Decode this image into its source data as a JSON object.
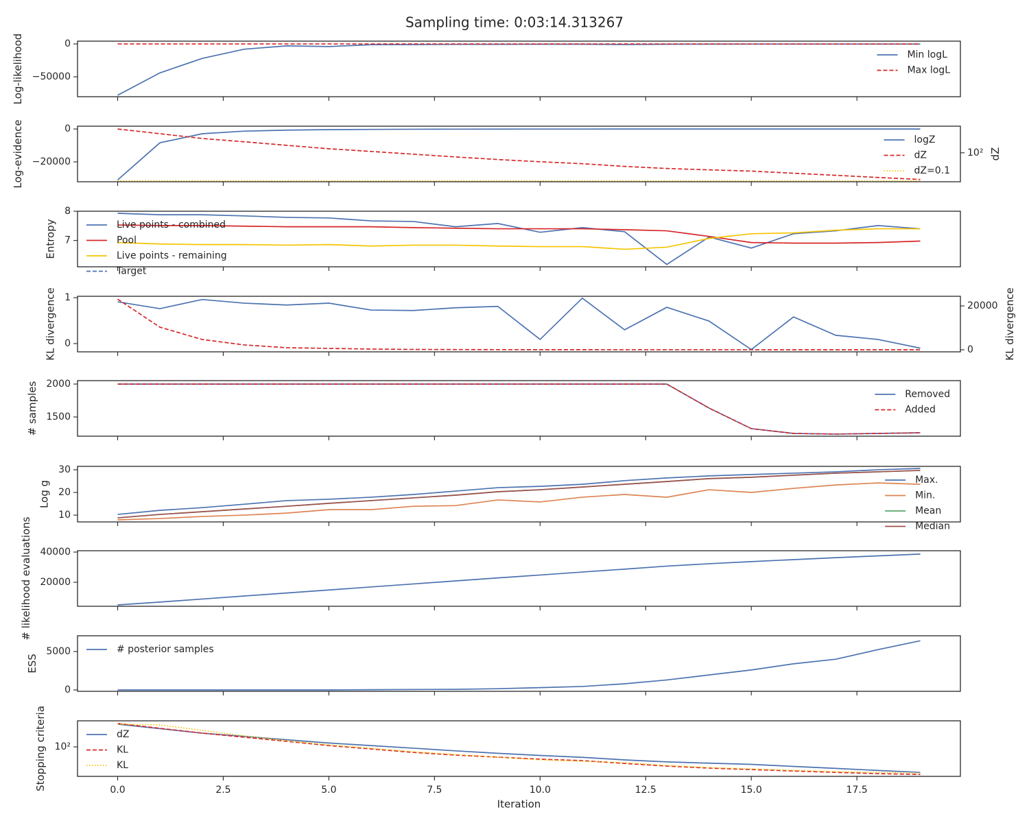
{
  "title": "Sampling time: 0:03:14.313267",
  "sharex": true,
  "chart_data": [
    {
      "type": "line",
      "ylabel": "Log-likelihood",
      "x": [
        0,
        1,
        2,
        3,
        4,
        5,
        6,
        7,
        8,
        9,
        10,
        11,
        12,
        13,
        14,
        15,
        16,
        17,
        18,
        19
      ],
      "xlim": [
        -0.95,
        19.95
      ],
      "xticks": [
        0,
        2.5,
        5,
        7.5,
        10,
        12.5,
        15,
        17.5
      ],
      "ylim": [
        -80200,
        4200
      ],
      "yticks": [
        0,
        {
          "value": -50000,
          "label": "−50000"
        }
      ],
      "legend": "upper right",
      "series": [
        {
          "name": "Min logL",
          "color": "#4c72b0",
          "linestyle": "solid",
          "values": [
            -78000,
            -44000,
            -22000,
            -8000,
            -3000,
            -4000,
            -1200,
            -1000,
            -700,
            -600,
            -500,
            -500,
            -900,
            -500,
            -400,
            -300,
            -300,
            -300,
            -300,
            -300
          ]
        },
        {
          "name": "Max logL",
          "color": "#d62728",
          "linestyle": "dashed",
          "values": [
            -50,
            -50,
            -50,
            -50,
            -50,
            -50,
            -50,
            -50,
            -50,
            -50,
            -50,
            -50,
            -50,
            -50,
            -50,
            -50,
            -50,
            -50,
            -50,
            -50
          ]
        }
      ]
    },
    {
      "type": "line",
      "ylabel": "Log-evidence",
      "x": [
        0,
        1,
        2,
        3,
        4,
        5,
        6,
        7,
        8,
        9,
        10,
        11,
        12,
        13,
        14,
        15,
        16,
        17,
        18,
        19
      ],
      "xlim": [
        -0.95,
        19.95
      ],
      "xticks": [
        0,
        2.5,
        5,
        7.5,
        10,
        12.5,
        15,
        17.5
      ],
      "ylim": [
        -32100,
        1700
      ],
      "yticks": [
        0,
        {
          "value": -20000,
          "label": "−20000"
        }
      ],
      "y2label": "dZ",
      "y2scale": "log",
      "y2lim": [
        0.08,
        70000
      ],
      "y2ticks": [
        {
          "value": 100,
          "label": "10²"
        }
      ],
      "legend": "upper right",
      "series": [
        {
          "name": "logZ",
          "color": "#4c72b0",
          "linestyle": "solid",
          "values": [
            -31000,
            -8400,
            -2900,
            -1300,
            -700,
            -400,
            -250,
            -150,
            -100,
            -70,
            -50,
            -40,
            -30,
            -25,
            -20,
            -15,
            -12,
            -10,
            -8,
            -7
          ]
        },
        {
          "name": "dZ",
          "color": "#d62728",
          "linestyle": "dashed",
          "axis": "y2",
          "values": [
            35000,
            11000,
            3400,
            1500,
            630,
            270,
            140,
            71,
            36,
            19,
            11,
            6.8,
            3.5,
            2.1,
            1.5,
            1.1,
            0.65,
            0.39,
            0.23,
            0.14
          ]
        },
        {
          "name": "dZ=0.1",
          "color": "#f5c400",
          "linestyle": "dotted",
          "axis": "y2",
          "values": [
            0.1,
            0.1,
            0.1,
            0.1,
            0.1,
            0.1,
            0.1,
            0.1,
            0.1,
            0.1,
            0.1,
            0.1,
            0.1,
            0.1,
            0.1,
            0.1,
            0.1,
            0.1,
            0.1,
            0.1
          ]
        }
      ]
    },
    {
      "type": "line",
      "ylabel": "Entropy",
      "x": [
        0,
        1,
        2,
        3,
        4,
        5,
        6,
        7,
        8,
        9,
        10,
        11,
        12,
        13,
        14,
        15,
        16,
        17,
        18,
        19
      ],
      "xlim": [
        -0.95,
        19.95
      ],
      "xticks": [
        0,
        2.5,
        5,
        7.5,
        10,
        12.5,
        15,
        17.5
      ],
      "ylim": [
        6.1,
        8.0
      ],
      "yticks": [
        7,
        8
      ],
      "legend": "upper left",
      "series": [
        {
          "name": "Live points - combined",
          "color": "#4c72b0",
          "linestyle": "solid",
          "values": [
            7.93,
            7.88,
            7.88,
            7.84,
            7.79,
            7.77,
            7.67,
            7.65,
            7.47,
            7.58,
            7.28,
            7.44,
            7.3,
            6.18,
            7.12,
            6.74,
            7.23,
            7.33,
            7.51,
            7.4
          ]
        },
        {
          "name": "Pool",
          "color": "#d62728",
          "linestyle": "solid",
          "values": [
            7.53,
            7.51,
            7.51,
            7.49,
            7.47,
            7.47,
            7.47,
            7.44,
            7.42,
            7.4,
            7.4,
            7.4,
            7.37,
            7.33,
            7.14,
            6.93,
            6.91,
            6.91,
            6.93,
            6.98
          ]
        },
        {
          "name": "Live points - remaining",
          "color": "#f5c400",
          "linestyle": "solid",
          "values": [
            6.93,
            6.88,
            6.86,
            6.86,
            6.84,
            6.86,
            6.81,
            6.84,
            6.84,
            6.81,
            6.79,
            6.79,
            6.7,
            6.77,
            7.07,
            7.23,
            7.26,
            7.35,
            7.4,
            7.4
          ]
        },
        {
          "name": "Target",
          "color": "#4c72b0",
          "linestyle": "dashed",
          "values": [
            null,
            null,
            null,
            null,
            null,
            null,
            null,
            null,
            null,
            null,
            null,
            null,
            null,
            null,
            null,
            null,
            null,
            null,
            null,
            null
          ]
        }
      ]
    },
    {
      "type": "line",
      "ylabel": "KL divergence",
      "x": [
        0,
        1,
        2,
        3,
        4,
        5,
        6,
        7,
        8,
        9,
        10,
        11,
        12,
        13,
        14,
        15,
        16,
        17,
        18,
        19
      ],
      "xlim": [
        -0.95,
        19.95
      ],
      "xticks": [
        0,
        2.5,
        5,
        7.5,
        10,
        12.5,
        15,
        17.5
      ],
      "ylim": [
        -0.18,
        1.03
      ],
      "yticks": [
        0,
        1
      ],
      "y2label": "KL divergence",
      "y2lim": [
        -940,
        24400
      ],
      "y2ticks": [
        0,
        20000
      ],
      "series": [
        {
          "color": "#4c72b0",
          "linestyle": "solid",
          "values": [
            0.91,
            0.76,
            0.96,
            0.88,
            0.84,
            0.88,
            0.73,
            0.72,
            0.78,
            0.81,
            0.09,
            0.99,
            0.3,
            0.79,
            0.49,
            -0.13,
            0.58,
            0.18,
            0.09,
            -0.1
          ]
        },
        {
          "color": "#d62728",
          "linestyle": "dashed",
          "axis": "y2",
          "values": [
            23100,
            10300,
            4700,
            2200,
            940,
            630,
            310,
            160,
            100,
            60,
            40,
            30,
            20,
            15,
            10,
            10,
            5,
            5,
            5,
            5
          ]
        }
      ]
    },
    {
      "type": "line",
      "ylabel": "# samples",
      "x": [
        0,
        1,
        2,
        3,
        4,
        5,
        6,
        7,
        8,
        9,
        10,
        11,
        12,
        13,
        14,
        15,
        16,
        17,
        18,
        19
      ],
      "xlim": [
        -0.95,
        19.95
      ],
      "xticks": [
        0,
        2.5,
        5,
        7.5,
        10,
        12.5,
        15,
        17.5
      ],
      "ylim": [
        1208,
        2052
      ],
      "yticks": [
        1500,
        2000
      ],
      "legend": "upper right",
      "series": [
        {
          "name": "Removed",
          "color": "#4c72b0",
          "linestyle": "solid",
          "values": [
            2000,
            2000,
            2000,
            2000,
            2000,
            2000,
            2000,
            2000,
            2000,
            2000,
            2000,
            2000,
            2000,
            2000,
            1635,
            1323,
            1250,
            1240,
            1250,
            1260
          ]
        },
        {
          "name": "Added",
          "color": "#d62728",
          "linestyle": "dashed",
          "values": [
            2000,
            2000,
            2000,
            2000,
            2000,
            2000,
            2000,
            2000,
            2000,
            2000,
            2000,
            2000,
            2000,
            2000,
            1635,
            1323,
            1250,
            1240,
            1250,
            1260
          ]
        }
      ]
    },
    {
      "type": "line",
      "ylabel": "Log g",
      "x": [
        0,
        1,
        2,
        3,
        4,
        5,
        6,
        7,
        8,
        9,
        10,
        11,
        12,
        13,
        14,
        15,
        16,
        17,
        18,
        19
      ],
      "xlim": [
        -0.95,
        19.95
      ],
      "xticks": [
        0,
        2.5,
        5,
        7.5,
        10,
        12.5,
        15,
        17.5
      ],
      "ylim": [
        7,
        31.5
      ],
      "yticks": [
        10,
        20,
        30
      ],
      "legend": "upper right",
      "series": [
        {
          "name": "Max.",
          "color": "#4c72b0",
          "linestyle": "solid",
          "values": [
            10.3,
            12.1,
            13.3,
            14.8,
            16.4,
            17.0,
            17.9,
            19.1,
            20.6,
            22.1,
            22.7,
            23.6,
            25.2,
            26.4,
            27.3,
            27.9,
            28.5,
            29.1,
            30.0,
            30.6
          ]
        },
        {
          "name": "Min.",
          "color": "#dd8452",
          "linestyle": "solid",
          "values": [
            7.9,
            8.5,
            9.4,
            10.0,
            10.9,
            12.4,
            12.4,
            13.9,
            14.2,
            16.7,
            15.8,
            17.9,
            19.1,
            17.9,
            21.2,
            20.0,
            21.8,
            23.3,
            24.2,
            23.6
          ]
        },
        {
          "name": "Mean",
          "color": "#55a868",
          "linestyle": "solid",
          "values": [
            8.8,
            10.3,
            11.5,
            12.7,
            13.9,
            15.2,
            16.4,
            17.6,
            18.8,
            20.3,
            21.2,
            22.4,
            23.6,
            24.8,
            26.1,
            26.7,
            27.6,
            28.5,
            29.1,
            29.7
          ]
        },
        {
          "name": "Median",
          "color": "#a0504e",
          "linestyle": "solid",
          "values": [
            8.8,
            10.3,
            11.5,
            12.7,
            13.9,
            15.2,
            16.4,
            17.6,
            18.8,
            20.3,
            21.2,
            22.4,
            23.6,
            24.8,
            26.1,
            26.7,
            27.6,
            28.5,
            29.1,
            29.7
          ]
        }
      ]
    },
    {
      "type": "line",
      "ylabel": "# likelihood evaluations",
      "x": [
        0,
        1,
        2,
        3,
        4,
        5,
        6,
        7,
        8,
        9,
        10,
        11,
        12,
        13,
        14,
        15,
        16,
        17,
        18,
        19
      ],
      "xlim": [
        -0.95,
        19.95
      ],
      "xticks": [
        0,
        2.5,
        5,
        7.5,
        10,
        12.5,
        15,
        17.5
      ],
      "ylim": [
        4100,
        40900
      ],
      "yticks": [
        20000,
        40000
      ],
      "series": [
        {
          "color": "#4c72b0",
          "linestyle": "solid",
          "values": [
            5000,
            6900,
            8900,
            10900,
            12900,
            14900,
            16900,
            18900,
            20900,
            22900,
            24800,
            26800,
            28700,
            30700,
            32300,
            33700,
            35000,
            36300,
            37500,
            38700
          ]
        }
      ]
    },
    {
      "type": "line",
      "ylabel": "ESS",
      "x": [
        0,
        1,
        2,
        3,
        4,
        5,
        6,
        7,
        8,
        9,
        10,
        11,
        12,
        13,
        14,
        15,
        16,
        17,
        18,
        19
      ],
      "xlim": [
        -0.95,
        19.95
      ],
      "xticks": [
        0,
        2.5,
        5,
        7.5,
        10,
        12.5,
        15,
        17.5
      ],
      "ylim": [
        -180,
        7050
      ],
      "yticks": [
        0,
        5000
      ],
      "legend": "upper left",
      "series": [
        {
          "name": "# posterior samples",
          "color": "#4c72b0",
          "linestyle": "solid",
          "values": [
            0,
            0,
            0,
            0,
            0,
            0,
            30,
            60,
            80,
            160,
            300,
            450,
            800,
            1300,
            1950,
            2600,
            3400,
            4000,
            5250,
            6400
          ]
        }
      ]
    },
    {
      "type": "line",
      "ylabel": "Stopping criteria",
      "xlabel": "Iteration",
      "x": [
        0,
        1,
        2,
        3,
        4,
        5,
        6,
        7,
        8,
        9,
        10,
        11,
        12,
        13,
        14,
        15,
        16,
        17,
        18,
        19
      ],
      "xlim": [
        -0.95,
        19.95
      ],
      "xticks": [
        {
          "value": 0,
          "label": "0.0"
        },
        2.5,
        {
          "value": 5,
          "label": "5.0"
        },
        7.5,
        {
          "value": 10,
          "label": "10.0"
        },
        12.5,
        {
          "value": 15,
          "label": "15.0"
        },
        17.5
      ],
      "yscale": "log",
      "ylim": [
        0.05,
        83000
      ],
      "yticks": [
        {
          "value": 100,
          "label": "10²"
        }
      ],
      "legend": "upper left",
      "series": [
        {
          "name": "dZ",
          "color": "#4c72b0",
          "linestyle": "solid",
          "values": [
            35000,
            11000,
            3400,
            1500,
            630,
            270,
            140,
            71,
            36,
            19,
            11,
            6.8,
            3.5,
            2.1,
            1.5,
            1.1,
            0.65,
            0.39,
            0.23,
            0.14
          ]
        },
        {
          "name": "KL",
          "color": "#d62728",
          "linestyle": "dashed",
          "values": [
            42000,
            12000,
            3500,
            1200,
            420,
            140,
            59,
            24,
            12,
            7.1,
            4.2,
            2.9,
            1.4,
            0.71,
            0.42,
            0.29,
            0.2,
            0.14,
            0.1,
            0.083
          ]
        },
        {
          "name": "KL",
          "color": "#f5c400",
          "linestyle": "dotted",
          "values": [
            35000,
            29000,
            7000,
            1700,
            490,
            170,
            71,
            29,
            14,
            7.1,
            3.5,
            2.4,
            1.7,
            0.83,
            0.49,
            0.35,
            0.24,
            0.17,
            0.14,
            0.12
          ]
        }
      ]
    }
  ]
}
